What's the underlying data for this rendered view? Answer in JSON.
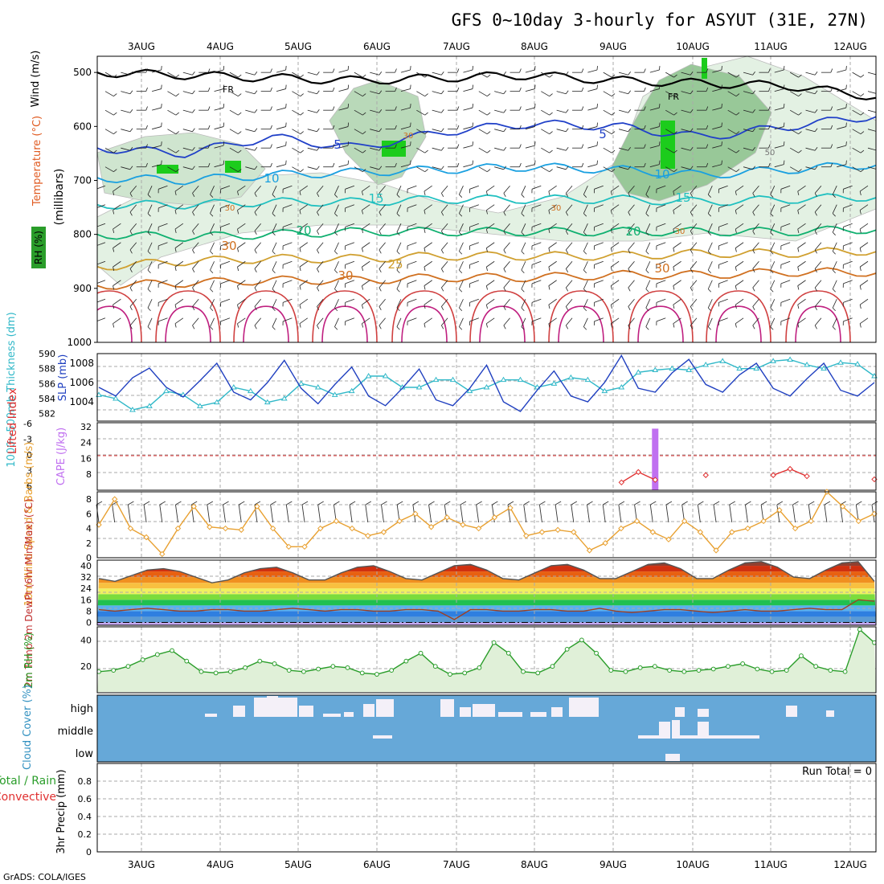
{
  "title": "GFS 0~10day 3-hourly for ASYUT (31E, 27N)",
  "footer": "GrADS: COLA/IGES",
  "run_total_label": "Run Total = 0",
  "colors": {
    "rh": "#2a9d2a",
    "temp": "#e05a20",
    "slp": "#2040c0",
    "thick": "#30b8c8",
    "li": "#e03030",
    "cape": "#c070f0",
    "wind": "#e8a030",
    "cloud_bg": "#66a8d8",
    "cloud_patch": "#f4f0f8"
  },
  "chart_data": [
    {
      "type": "line",
      "name": "upper-air cross section",
      "title": "Temperature (°C), Wind (m/s), RH (%)",
      "ylabel": "(millibars)",
      "ylabel_parts": [
        "RH (%)",
        "Temperature (°C)",
        "Wind (m/s)"
      ],
      "y_ticks": [
        "500",
        "600",
        "700",
        "800",
        "900",
        "1000"
      ],
      "x_top_ticks": [
        "3AUG",
        "4AUG",
        "5AUG",
        "6AUG",
        "7AUG",
        "8AUG",
        "9AUG",
        "10AUG",
        "11AUG",
        "12AUG"
      ],
      "contour_labels": [
        "5",
        "5",
        "10",
        "10",
        "15",
        "15",
        "20",
        "20",
        "25",
        "30",
        "30",
        "FR",
        "FR",
        "30",
        "30",
        "30",
        "50",
        "30",
        "30"
      ],
      "isotherms_hpa": [
        {
          "label": "FR",
          "values": [
            500,
            505,
            510,
            515,
            510,
            505,
            515,
            520,
            525,
            545
          ]
        },
        {
          "label": "5",
          "values": [
            640,
            650,
            620,
            640,
            610,
            595,
            600,
            620,
            600,
            580
          ]
        },
        {
          "label": "10",
          "values": [
            695,
            700,
            690,
            685,
            680,
            675,
            680,
            690,
            680,
            670
          ]
        },
        {
          "label": "15",
          "values": [
            745,
            745,
            740,
            740,
            735,
            735,
            735,
            740,
            735,
            730
          ]
        },
        {
          "label": "20",
          "values": [
            800,
            805,
            800,
            795,
            795,
            795,
            795,
            795,
            795,
            790
          ]
        },
        {
          "label": "25",
          "values": [
            860,
            850,
            845,
            845,
            840,
            840,
            840,
            835,
            835,
            830
          ]
        },
        {
          "label": "30",
          "values": [
            895,
            890,
            885,
            885,
            880,
            880,
            875,
            875,
            870,
            870
          ]
        }
      ]
    },
    {
      "type": "line",
      "name": "slp and thickness",
      "ylabel_slp": "SLP (mb)",
      "ylabel_thick": "1000~500mb Thickness (dm)",
      "ylim_slp": [
        1002,
        1009
      ],
      "ylim_thick": [
        581,
        590
      ],
      "y_ticks_slp": [
        "1004",
        "1006",
        "1008"
      ],
      "y_ticks_thick": [
        "582",
        "584",
        "586",
        "588",
        "590"
      ],
      "series": [
        {
          "name": "SLP (mb)",
          "values": [
            1005.5,
            1004.6,
            1006.5,
            1007.5,
            1005.5,
            1004.5,
            1006.2,
            1008.0,
            1005.0,
            1004.2,
            1006.0,
            1008.3,
            1005.4,
            1003.8,
            1005.8,
            1007.6,
            1004.6,
            1003.6,
            1005.4,
            1007.4,
            1004.2,
            1003.6,
            1005.4,
            1007.8,
            1004.0,
            1003.0,
            1005.2,
            1007.2,
            1004.6,
            1004.0,
            1006.0,
            1008.8,
            1005.4,
            1005.0,
            1007.0,
            1008.4,
            1005.8,
            1005.0,
            1006.8,
            1008.0,
            1005.4,
            1004.6,
            1006.4,
            1008.0,
            1005.2,
            1004.6,
            1006.0
          ]
        },
        {
          "name": "Thickness (dm)",
          "values": [
            584.5,
            584.0,
            582.5,
            583.0,
            585.0,
            584.5,
            583.0,
            583.5,
            585.5,
            585.0,
            583.5,
            584.0,
            586.0,
            585.5,
            584.5,
            585.0,
            587.0,
            587.0,
            585.5,
            585.5,
            586.5,
            586.5,
            585.0,
            585.5,
            586.5,
            586.5,
            585.5,
            586.0,
            586.8,
            586.5,
            585.0,
            585.5,
            587.5,
            587.8,
            588.0,
            587.8,
            588.5,
            589.0,
            588.0,
            588.0,
            589.0,
            589.2,
            588.5,
            588.0,
            588.8,
            588.6,
            587.0
          ]
        }
      ]
    },
    {
      "type": "line",
      "name": "lifted index and cape",
      "ylabel_li": "Lifted Index",
      "ylabel_cape": "CAPE (J/kg)",
      "y_ticks_li": [
        "-6",
        "-3",
        "0",
        "3",
        "6"
      ],
      "y_ticks_cape": [
        "32",
        "24",
        "16",
        "8"
      ],
      "series": [
        {
          "name": "Lifted Index",
          "values": [
            null,
            null,
            null,
            null,
            null,
            null,
            null,
            null,
            null,
            null,
            null,
            null,
            null,
            null,
            null,
            null,
            null,
            null,
            null,
            null,
            null,
            null,
            null,
            null,
            null,
            null,
            null,
            null,
            null,
            null,
            null,
            5.0,
            3.0,
            4.5,
            null,
            null,
            3.6,
            null,
            null,
            null,
            3.6,
            2.4,
            3.8,
            null,
            null,
            null,
            4.4
          ]
        },
        {
          "name": "CAPE (J/kg)",
          "values": [
            0,
            0,
            0,
            0,
            0,
            0,
            0,
            0,
            0,
            0,
            0,
            0,
            0,
            0,
            0,
            0,
            0,
            0,
            0,
            0,
            0,
            0,
            0,
            0,
            0,
            0,
            0,
            0,
            0,
            0,
            0,
            0,
            0,
            31,
            0,
            0,
            0,
            0,
            0,
            0,
            0,
            0,
            0,
            0,
            0,
            0,
            0
          ]
        }
      ]
    },
    {
      "type": "line",
      "name": "10m wind speed",
      "ylabel": "10m Wind Speed & Barbs (m/s)",
      "ylim": [
        0,
        9
      ],
      "y_ticks": [
        "0",
        "2",
        "4",
        "6",
        "8"
      ],
      "series": [
        {
          "name": "Wind speed",
          "values": [
            4.5,
            8.0,
            4.0,
            2.8,
            0.5,
            4.0,
            7.0,
            4.2,
            4.0,
            3.8,
            7.0,
            4.0,
            1.5,
            1.5,
            4.0,
            5.0,
            4.0,
            3.0,
            3.5,
            5.0,
            6.0,
            4.2,
            5.5,
            4.5,
            4.0,
            5.5,
            6.8,
            3.0,
            3.5,
            3.8,
            3.5,
            1.0,
            2.0,
            4.0,
            5.0,
            3.5,
            2.5,
            5.0,
            3.5,
            1.0,
            3.5,
            4.0,
            5.0,
            6.5,
            4.0,
            5.0,
            9.0,
            7.0,
            5.0,
            6.0
          ]
        }
      ]
    },
    {
      "type": "area",
      "name": "2m temperature and dewpoint",
      "ylabel": "2m Temp 2m DewPt (6hr Min/Max) (°C)",
      "ylim": [
        -2,
        44
      ],
      "y_ticks": [
        "0",
        "8",
        "16",
        "24",
        "32",
        "40"
      ],
      "series": [
        {
          "name": "2m Temp",
          "values": [
            31,
            29,
            33,
            37,
            38,
            36,
            32,
            28,
            30,
            35,
            38,
            39,
            35,
            30,
            30,
            35,
            39,
            40,
            36,
            31,
            30,
            35,
            40,
            41,
            37,
            31,
            30,
            35,
            40,
            41,
            37,
            31,
            31,
            36,
            41,
            42,
            38,
            31,
            31,
            37,
            42,
            43,
            39,
            32,
            31,
            37,
            42,
            43,
            29
          ]
        },
        {
          "name": "2m DewPt",
          "values": [
            9,
            8,
            9,
            10,
            9,
            8,
            8,
            9,
            9,
            8,
            8,
            9,
            10,
            9,
            8,
            9,
            9,
            8,
            8,
            9,
            9,
            8,
            2,
            9,
            9,
            8,
            8,
            9,
            9,
            8,
            8,
            10,
            8,
            7,
            8,
            9,
            9,
            8,
            7,
            8,
            9,
            8,
            8,
            9,
            10,
            9,
            9,
            16,
            15
          ]
        }
      ]
    },
    {
      "type": "area",
      "name": "2m relative humidity",
      "ylabel": "2m RH (%)",
      "ylim": [
        0,
        50
      ],
      "y_ticks": [
        "20",
        "40"
      ],
      "series": [
        {
          "name": "2m RH",
          "values": [
            16,
            17,
            20,
            25,
            29,
            32,
            24,
            16,
            15,
            16,
            19,
            24,
            22,
            17,
            16,
            18,
            20,
            19,
            15,
            14,
            17,
            24,
            30,
            20,
            14,
            15,
            19,
            38,
            30,
            16,
            15,
            20,
            33,
            40,
            30,
            17,
            16,
            19,
            20,
            17,
            16,
            17,
            18,
            20,
            22,
            18,
            16,
            17,
            28,
            20,
            17,
            16,
            48,
            38
          ]
        }
      ]
    },
    {
      "type": "heatmap",
      "name": "cloud cover",
      "ylabel": "Cloud Cover (%)",
      "row_labels": [
        "high",
        "middle",
        "low"
      ]
    },
    {
      "type": "bar",
      "name": "3hr precipitation",
      "ylabel": "3hr Precip (mm)",
      "ylabel_total": "Total / Rain",
      "ylabel_conv": "Convective",
      "ylim": [
        0,
        1
      ],
      "y_ticks": [
        "0",
        "0.2",
        "0.4",
        "0.6",
        "0.8"
      ],
      "values": [
        0,
        0,
        0,
        0,
        0,
        0,
        0,
        0,
        0,
        0
      ],
      "x_ticks": [
        "3AUG",
        "4AUG",
        "5AUG",
        "6AUG",
        "7AUG",
        "8AUG",
        "9AUG",
        "10AUG",
        "11AUG",
        "12AUG"
      ]
    }
  ]
}
